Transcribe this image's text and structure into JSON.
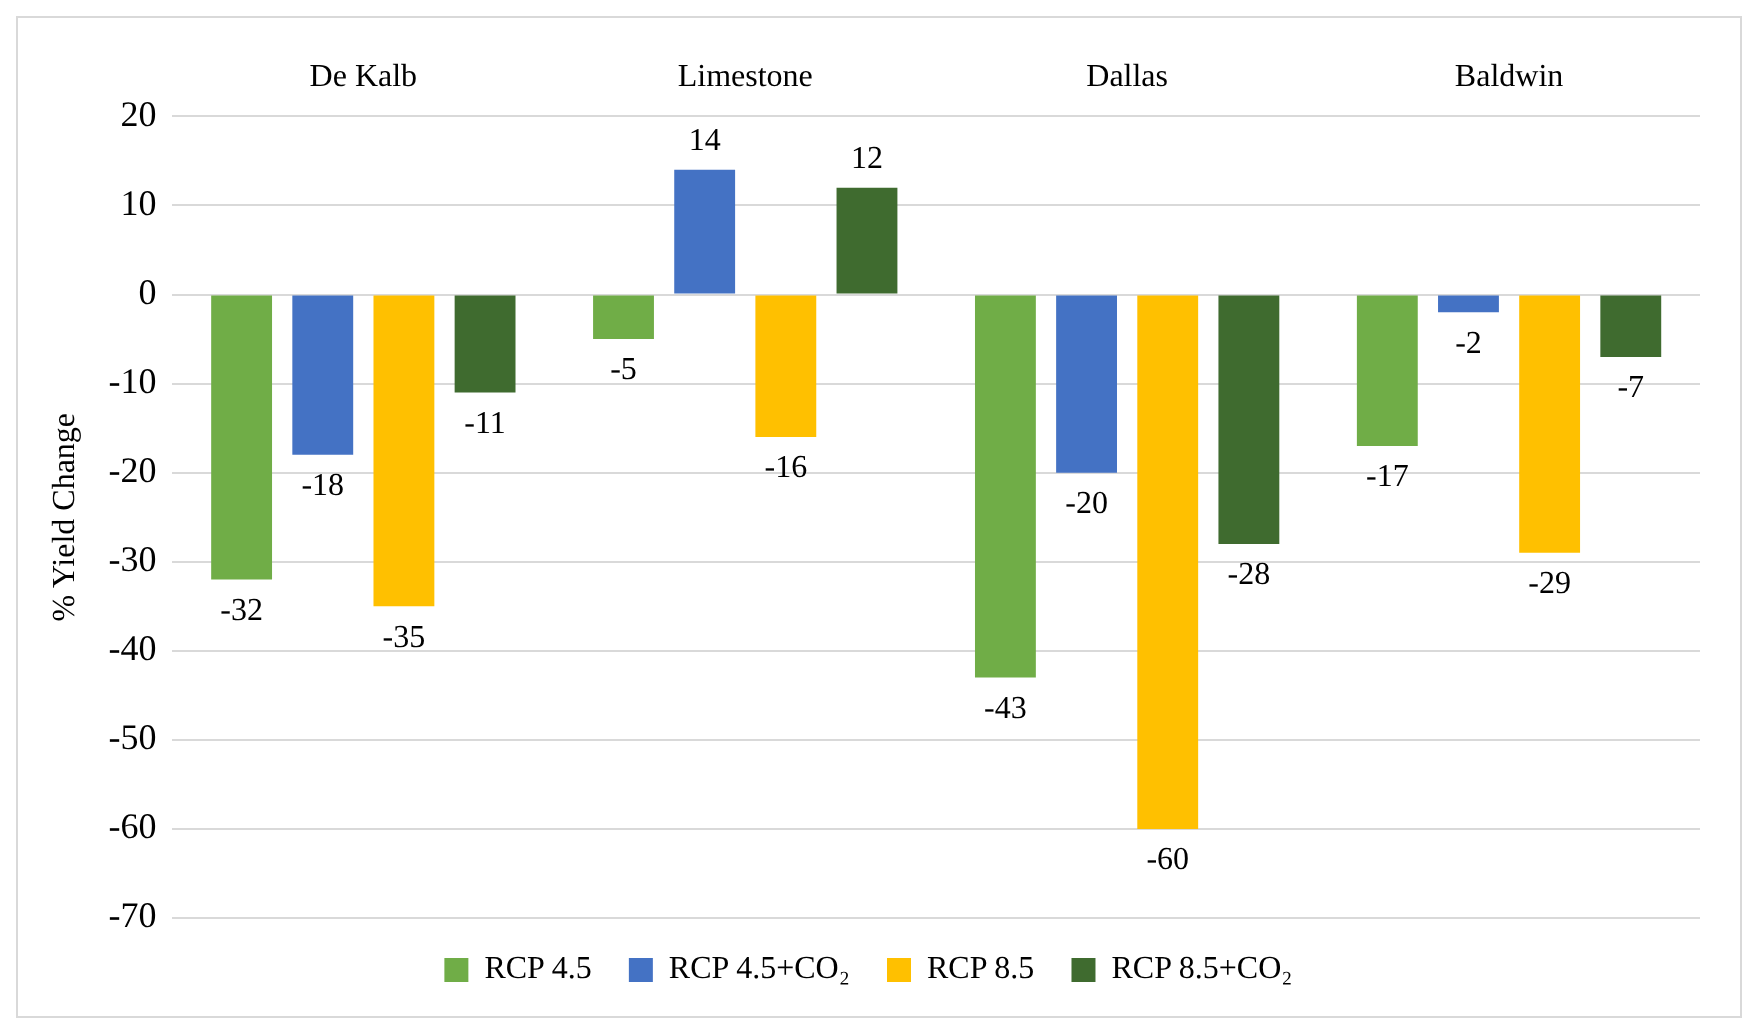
{
  "chart_data": {
    "type": "bar",
    "ylabel": "% Yield Change",
    "categories": [
      "De Kalb",
      "Limestone",
      "Dallas",
      "Baldwin"
    ],
    "series": [
      {
        "name": "RCP 4.5",
        "color": "#70ad47",
        "values": [
          -32,
          -5,
          -43,
          -17
        ]
      },
      {
        "name": "RCP 4.5+CO₂",
        "color": "#4472c4",
        "values": [
          -18,
          14,
          -20,
          -2
        ]
      },
      {
        "name": "RCP 8.5",
        "color": "#ffc000",
        "values": [
          -35,
          -16,
          -60,
          -29
        ]
      },
      {
        "name": "RCP 8.5+CO₂",
        "color": "#3f6b2f",
        "values": [
          -11,
          12,
          -28,
          -7
        ]
      }
    ],
    "ylim": [
      -70,
      20
    ],
    "yticks": [
      -70,
      -60,
      -50,
      -40,
      -30,
      -20,
      -10,
      0,
      10,
      20
    ],
    "grid": "y",
    "legend": "bottom",
    "data_labels": true
  }
}
